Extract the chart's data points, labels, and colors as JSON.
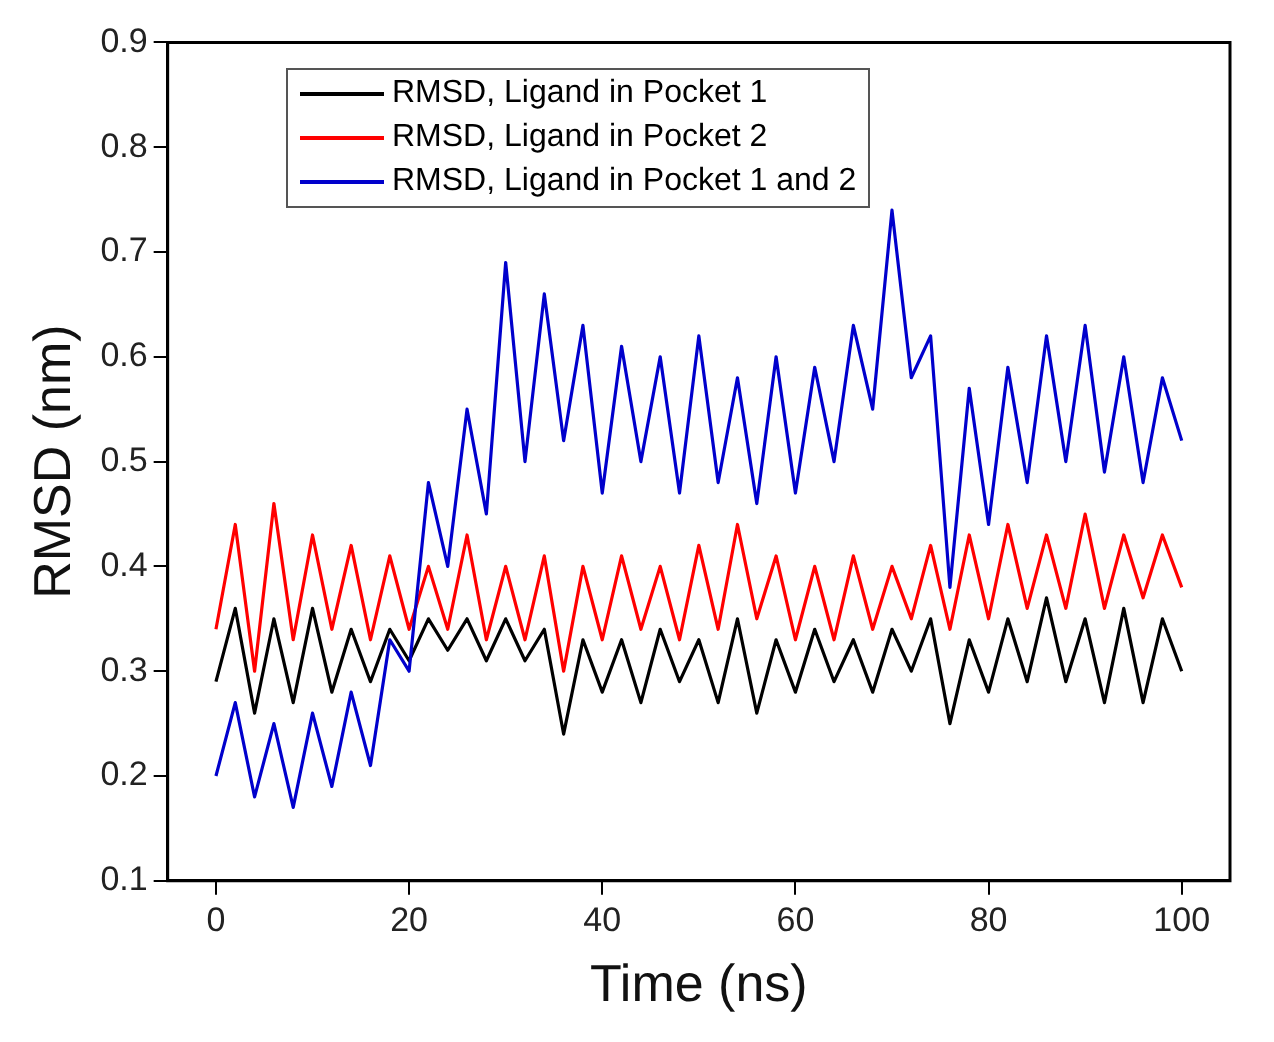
{
  "chart_data": {
    "type": "line",
    "xlabel": "Time (ns)",
    "ylabel": "RMSD (nm)",
    "x": [
      0,
      2,
      4,
      6,
      8,
      10,
      12,
      14,
      16,
      18,
      20,
      22,
      24,
      26,
      28,
      30,
      32,
      34,
      36,
      38,
      40,
      42,
      44,
      46,
      48,
      50,
      52,
      54,
      56,
      58,
      60,
      62,
      64,
      66,
      68,
      70,
      72,
      74,
      76,
      78,
      80,
      82,
      84,
      86,
      88,
      90,
      92,
      94,
      96,
      98,
      100
    ],
    "series": [
      {
        "name": "RMSD, Ligand in Pocket 1",
        "color": "#000000",
        "values": [
          0.29,
          0.36,
          0.26,
          0.35,
          0.27,
          0.36,
          0.28,
          0.34,
          0.29,
          0.34,
          0.31,
          0.35,
          0.32,
          0.35,
          0.31,
          0.35,
          0.31,
          0.34,
          0.24,
          0.33,
          0.28,
          0.33,
          0.27,
          0.34,
          0.29,
          0.33,
          0.27,
          0.35,
          0.26,
          0.33,
          0.28,
          0.34,
          0.29,
          0.33,
          0.28,
          0.34,
          0.3,
          0.35,
          0.25,
          0.33,
          0.28,
          0.35,
          0.29,
          0.37,
          0.29,
          0.35,
          0.27,
          0.36,
          0.27,
          0.35,
          0.3
        ]
      },
      {
        "name": "RMSD, Ligand in Pocket 2",
        "color": "#ff0000",
        "values": [
          0.34,
          0.44,
          0.3,
          0.46,
          0.33,
          0.43,
          0.34,
          0.42,
          0.33,
          0.41,
          0.34,
          0.4,
          0.34,
          0.43,
          0.33,
          0.4,
          0.33,
          0.41,
          0.3,
          0.4,
          0.33,
          0.41,
          0.34,
          0.4,
          0.33,
          0.42,
          0.34,
          0.44,
          0.35,
          0.41,
          0.33,
          0.4,
          0.33,
          0.41,
          0.34,
          0.4,
          0.35,
          0.42,
          0.34,
          0.43,
          0.35,
          0.44,
          0.36,
          0.43,
          0.36,
          0.45,
          0.36,
          0.43,
          0.37,
          0.43,
          0.38
        ]
      },
      {
        "name": "RMSD, Ligand in Pocket 1 and 2",
        "color": "#0000cc",
        "values": [
          0.2,
          0.27,
          0.18,
          0.25,
          0.17,
          0.26,
          0.19,
          0.28,
          0.21,
          0.33,
          0.3,
          0.48,
          0.4,
          0.55,
          0.45,
          0.69,
          0.5,
          0.66,
          0.52,
          0.63,
          0.47,
          0.61,
          0.5,
          0.6,
          0.47,
          0.62,
          0.48,
          0.58,
          0.46,
          0.6,
          0.47,
          0.59,
          0.5,
          0.63,
          0.55,
          0.74,
          0.58,
          0.62,
          0.38,
          0.57,
          0.44,
          0.59,
          0.48,
          0.62,
          0.5,
          0.63,
          0.49,
          0.6,
          0.48,
          0.58,
          0.52
        ]
      }
    ],
    "xlim": [
      -5,
      105
    ],
    "xticks": [
      0,
      20,
      40,
      60,
      80,
      100
    ],
    "ylim": [
      0.1,
      0.9
    ],
    "yticks": [
      0.1,
      0.2,
      0.3,
      0.4,
      0.5,
      0.6,
      0.7,
      0.8,
      0.9
    ],
    "legend": "top left",
    "grid": false,
    "marker": "none",
    "line_style": "solid"
  }
}
